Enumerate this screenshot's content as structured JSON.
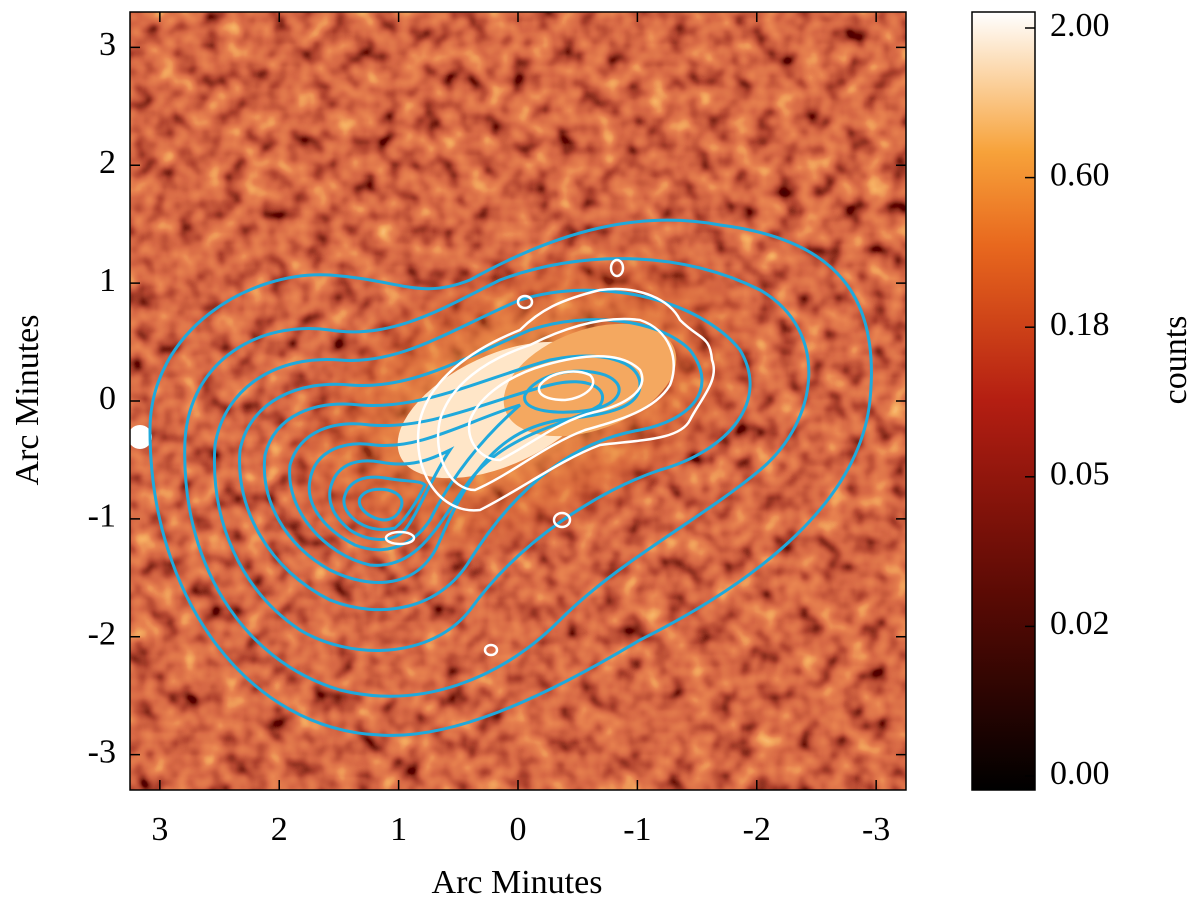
{
  "chart_data": {
    "type": "image",
    "xlabel": "Arc Minutes",
    "ylabel": "Arc Minutes",
    "xlim": [
      3.25,
      -3.25
    ],
    "ylim": [
      -3.3,
      3.3
    ],
    "xticks": [
      3,
      2,
      1,
      0,
      -1,
      -2,
      -3
    ],
    "yticks": [
      -3,
      -2,
      -1,
      0,
      1,
      2,
      3
    ],
    "colorbar": {
      "label": "counts",
      "ticks": [
        {
          "value": 0,
          "label": "0.00"
        },
        {
          "value": 0.02,
          "label": "0.02"
        },
        {
          "value": 0.05,
          "label": "0.05"
        },
        {
          "value": 0.18,
          "label": "0.18"
        },
        {
          "value": 0.6,
          "label": "0.60"
        },
        {
          "value": 2,
          "label": "2.00"
        }
      ]
    },
    "contour_colors": [
      "#1fa9dc",
      "#ffffff"
    ]
  }
}
